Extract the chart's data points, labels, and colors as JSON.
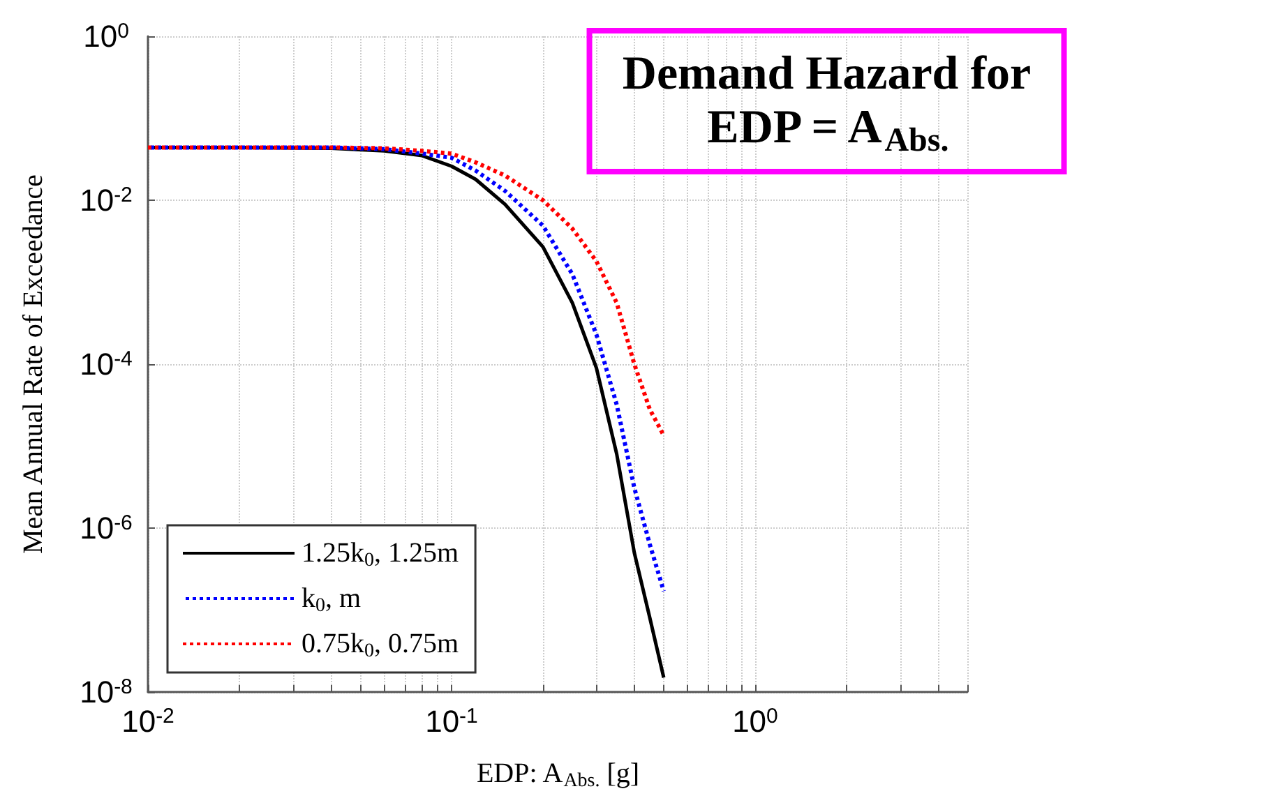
{
  "chart_data": {
    "type": "line",
    "title": "Demand Hazard for\nEDP = A$_{Abs.}$",
    "xlabel": "EDP: A$_{Abs.}$ [g]",
    "ylabel": "Mean Annual Rate of Exceedance",
    "x": [
      0.01,
      0.02,
      0.04,
      0.06,
      0.08,
      0.1,
      0.12,
      0.15,
      0.2,
      0.25,
      0.3,
      0.35,
      0.4,
      0.45,
      0.5
    ],
    "series": [
      {
        "name": "1.25k$_{0}$, 1.25m",
        "color": "#000000",
        "line_style": "solid",
        "values": [
          0.044,
          0.044,
          0.043,
          0.04,
          0.035,
          0.026,
          0.018,
          0.0089,
          0.0027,
          0.00056,
          9e-05,
          8e-06,
          5e-07,
          8e-08,
          1.5e-08
        ]
      },
      {
        "name": "k$_{0}$, m",
        "color": "#0000ff",
        "line_style": "dotted",
        "values": [
          0.044,
          0.044,
          0.044,
          0.042,
          0.037,
          0.033,
          0.023,
          0.013,
          0.0049,
          0.00125,
          0.00023,
          3.2e-05,
          3.1e-06,
          6.3e-07,
          1.7e-07
        ]
      },
      {
        "name": "0.75k$_{0}$, 0.75m",
        "color": "#ff0000",
        "line_style": "dotted",
        "values": [
          0.044,
          0.044,
          0.044,
          0.043,
          0.04,
          0.037,
          0.029,
          0.02,
          0.01,
          0.0045,
          0.0018,
          0.00056,
          0.0001,
          2.8e-05,
          1.35e-05
        ]
      }
    ],
    "log": "xy",
    "marker": "none",
    "grid": true,
    "legend": "bottom left",
    "xlim": [
      0.01,
      5
    ],
    "ylim": [
      1e-08,
      1
    ],
    "xticks": [
      {
        "value": 0.01,
        "label": "10$^{-2}$"
      },
      {
        "value": 0.02,
        "label": null
      },
      {
        "value": 0.03,
        "label": null
      },
      {
        "value": 0.04,
        "label": null
      },
      {
        "value": 0.05,
        "label": null
      },
      {
        "value": 0.06,
        "label": null
      },
      {
        "value": 0.07,
        "label": null
      },
      {
        "value": 0.08,
        "label": null
      },
      {
        "value": 0.09,
        "label": null
      },
      {
        "value": 0.1,
        "label": "10$^{-1}$"
      },
      {
        "value": 0.2,
        "label": null
      },
      {
        "value": 0.3,
        "label": null
      },
      {
        "value": 0.4,
        "label": null
      },
      {
        "value": 0.5,
        "label": null
      },
      {
        "value": 0.6,
        "label": null
      },
      {
        "value": 0.7,
        "label": null
      },
      {
        "value": 0.8,
        "label": null
      },
      {
        "value": 0.9,
        "label": null
      },
      {
        "value": 1,
        "label": "10$^{0}$"
      },
      {
        "value": 2,
        "label": null
      },
      {
        "value": 3,
        "label": null
      },
      {
        "value": 4,
        "label": null
      },
      {
        "value": 5,
        "label": null
      }
    ],
    "yticks": [
      {
        "value": 1e-08,
        "label": "10$^{-8}$"
      },
      {
        "value": 1e-06,
        "label": "10$^{-6}$"
      },
      {
        "value": 0.0001,
        "label": "10$^{-4}$"
      },
      {
        "value": 0.01,
        "label": "10$^{-2}$"
      },
      {
        "value": 1,
        "label": "10$^{0}$"
      }
    ]
  }
}
